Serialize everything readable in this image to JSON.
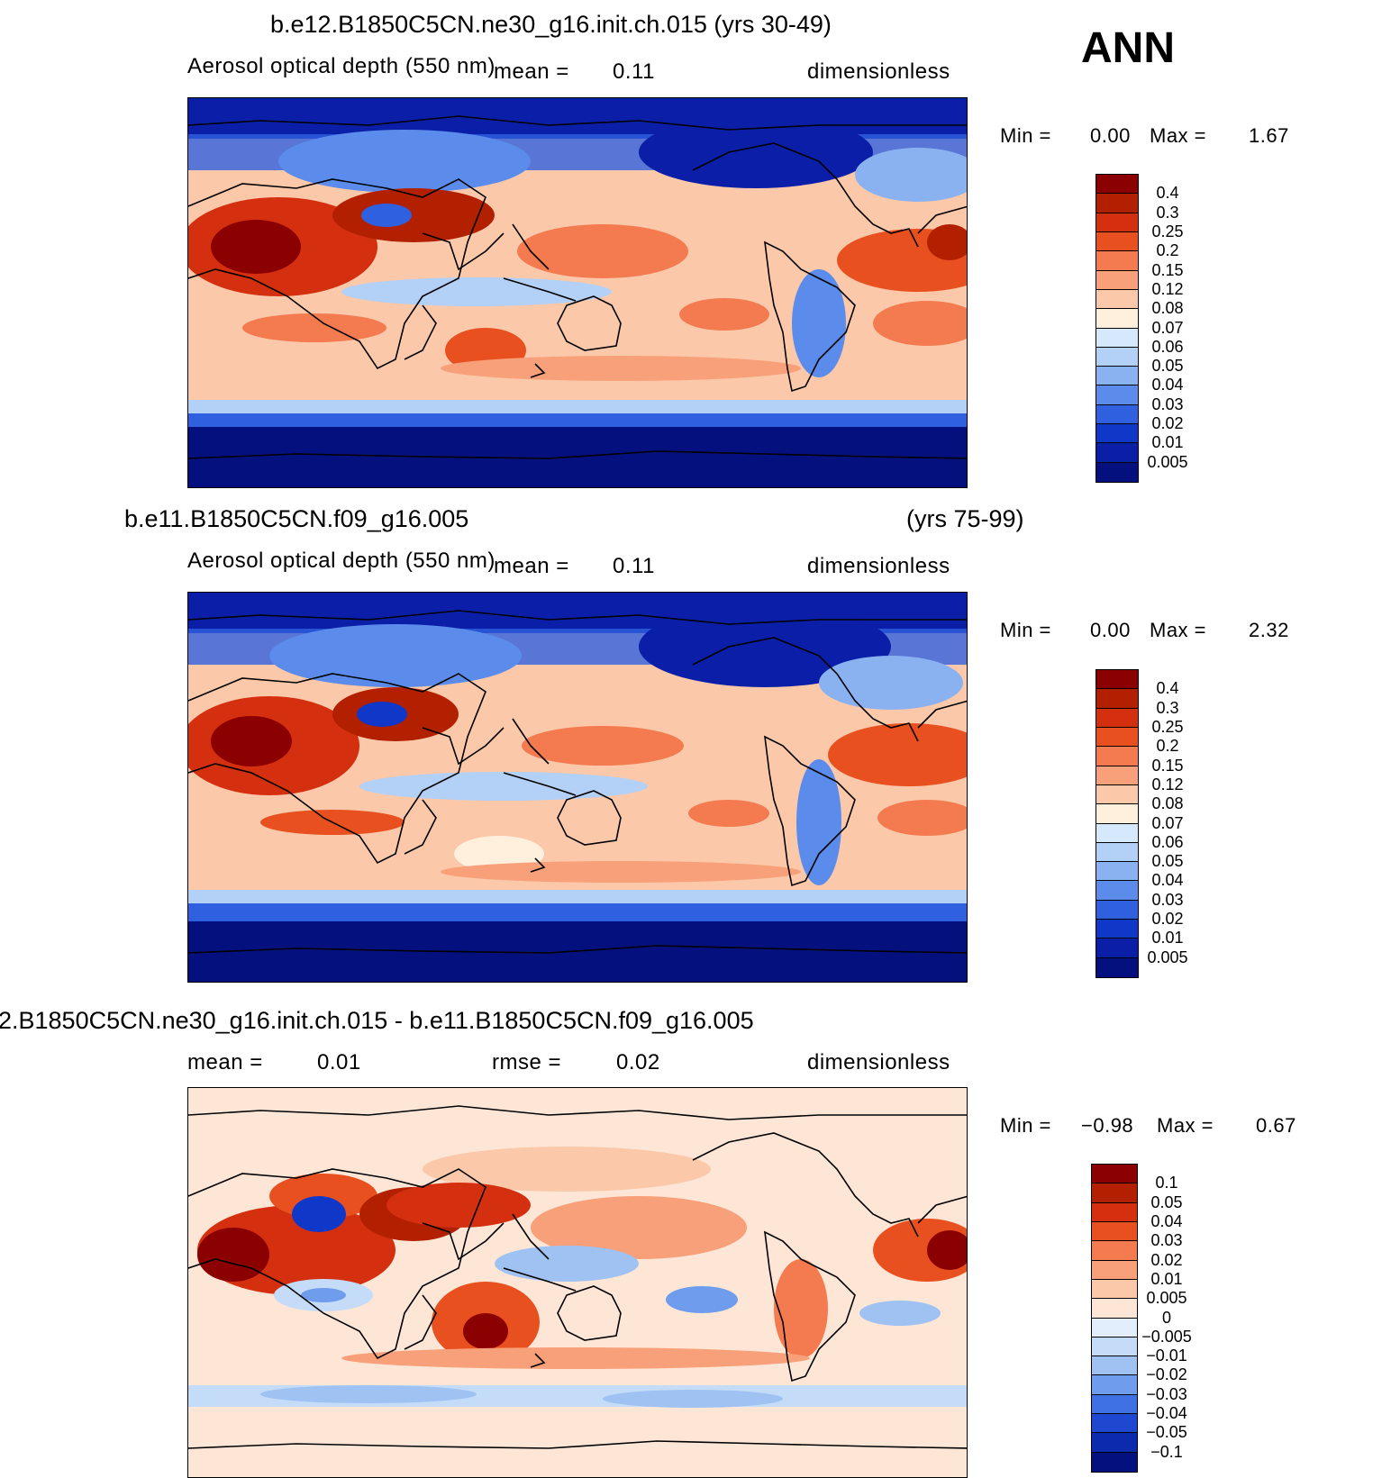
{
  "ann_label": "ANN",
  "panels": [
    {
      "title_left": "b.e12.B1850C5CN.ne30_g16.init.ch.015 (yrs 30-49)",
      "title_right": "",
      "variable": "Aerosol optical depth (550 nm)",
      "stat1": "mean =",
      "stat1_value": "0.11",
      "stat2": "",
      "stat2_value": "",
      "units": "dimensionless",
      "min_label": "Min =",
      "min_value": "0.00",
      "max_label": "Max =",
      "max_value": "1.67",
      "colorbar": {
        "colors": [
          "#8b0000",
          "#b22000",
          "#d43010",
          "#e85020",
          "#f47a50",
          "#f8a07a",
          "#fcc8aa",
          "#fff0dd",
          "#d6e8fb",
          "#b3d0f6",
          "#8ab2f0",
          "#5b8ceb",
          "#2f60e0",
          "#1038c8",
          "#0a1ea8",
          "#04107e"
        ],
        "labels": [
          "0.4",
          "0.3",
          "0.25",
          "0.2",
          "0.15",
          "0.12",
          "0.08",
          "0.07",
          "0.06",
          "0.05",
          "0.04",
          "0.03",
          "0.02",
          "0.01",
          "0.005"
        ]
      }
    },
    {
      "title_left": "b.e11.B1850C5CN.f09_g16.005",
      "title_right": "(yrs 75-99)",
      "variable": "Aerosol optical depth (550 nm)",
      "stat1": "mean =",
      "stat1_value": "0.11",
      "stat2": "",
      "stat2_value": "",
      "units": "dimensionless",
      "min_label": "Min =",
      "min_value": "0.00",
      "max_label": "Max =",
      "max_value": "2.32",
      "colorbar": {
        "colors": [
          "#8b0000",
          "#b22000",
          "#d43010",
          "#e85020",
          "#f47a50",
          "#f8a07a",
          "#fcc8aa",
          "#fff0dd",
          "#d6e8fb",
          "#b3d0f6",
          "#8ab2f0",
          "#5b8ceb",
          "#2f60e0",
          "#1038c8",
          "#0a1ea8",
          "#04107e"
        ],
        "labels": [
          "0.4",
          "0.3",
          "0.25",
          "0.2",
          "0.15",
          "0.12",
          "0.08",
          "0.07",
          "0.06",
          "0.05",
          "0.04",
          "0.03",
          "0.02",
          "0.01",
          "0.005"
        ]
      }
    },
    {
      "title_left": "2.B1850C5CN.ne30_g16.init.ch.015 - b.e11.B1850C5CN.f09_g16.005",
      "title_right": "",
      "variable": "",
      "stat1": "mean =",
      "stat1_value": "0.01",
      "stat2": "rmse =",
      "stat2_value": "0.02",
      "units": "dimensionless",
      "min_label": "Min =",
      "min_value": "−0.98",
      "max_label": "Max =",
      "max_value": "0.67",
      "colorbar": {
        "colors": [
          "#8b0000",
          "#b22000",
          "#d43010",
          "#e85020",
          "#f47a50",
          "#f8a07a",
          "#fcc8aa",
          "#fde6d6",
          "#e2eefb",
          "#c4dcf8",
          "#9fc2f3",
          "#6f9ced",
          "#3f70e4",
          "#1e48d0",
          "#0c2aae",
          "#04107e"
        ],
        "labels": [
          "0.1",
          "0.05",
          "0.04",
          "0.03",
          "0.02",
          "0.01",
          "0.005",
          "0",
          "−0.005",
          "−0.01",
          "−0.02",
          "−0.03",
          "−0.04",
          "−0.05",
          "−0.1"
        ]
      }
    }
  ]
}
